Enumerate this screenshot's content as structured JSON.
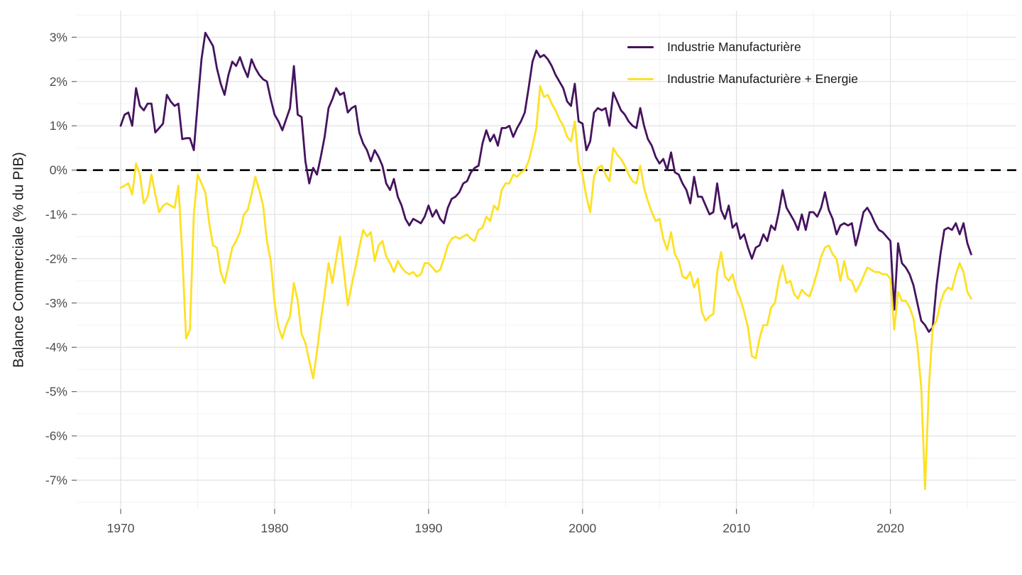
{
  "chart_data": {
    "type": "line",
    "title": "",
    "y_axis_title": "Balance Commerciale (% du PIB)",
    "x_axis_title": "",
    "x_start": 1970.0,
    "x_step": 0.25,
    "x_ticks": [
      1970,
      1980,
      1990,
      2000,
      2010,
      2020
    ],
    "x_minor_ticks": [
      1975,
      1985,
      1995,
      2005,
      2015,
      2025
    ],
    "y_ticks": [
      3,
      2,
      1,
      0,
      -1,
      -2,
      -3,
      -4,
      -5,
      -6,
      -7
    ],
    "y_minor_ticks": [
      3.5,
      2.5,
      1.5,
      0.5,
      -0.5,
      -1.5,
      -2.5,
      -3.5,
      -4.5,
      -5.5,
      -6.5,
      -7.5
    ],
    "y_tick_suffix": "%",
    "xlim": [
      1967.14,
      2028.18
    ],
    "ylim": [
      -7.65,
      3.6
    ],
    "grid": {
      "on": true,
      "major_color": "#e4e4e4",
      "minor_color": "#f0f0f0",
      "background": "#ffffff"
    },
    "tick_label_color": "#4d4d4d",
    "tick_mark_color": "#666666",
    "zero_reference_line": {
      "value": 0,
      "style": "dashed",
      "color": "#000000"
    },
    "legend": {
      "position": "top-right-inside"
    },
    "series": [
      {
        "name": "Industrie Manufacturière",
        "color": "#45135f",
        "values": [
          1.0,
          1.25,
          1.3,
          1.0,
          1.85,
          1.45,
          1.35,
          1.5,
          1.5,
          0.85,
          0.95,
          1.05,
          1.7,
          1.55,
          1.45,
          1.5,
          0.7,
          0.72,
          0.72,
          0.45,
          1.5,
          2.5,
          3.1,
          2.95,
          2.8,
          2.3,
          1.95,
          1.7,
          2.15,
          2.45,
          2.35,
          2.55,
          2.3,
          2.1,
          2.5,
          2.3,
          2.15,
          2.05,
          2.0,
          1.6,
          1.25,
          1.1,
          0.9,
          1.15,
          1.4,
          2.35,
          1.25,
          1.2,
          0.2,
          -0.3,
          0.05,
          -0.1,
          0.3,
          0.75,
          1.4,
          1.6,
          1.85,
          1.7,
          1.75,
          1.3,
          1.4,
          1.45,
          0.85,
          0.6,
          0.45,
          0.2,
          0.45,
          0.3,
          0.1,
          -0.3,
          -0.45,
          -0.2,
          -0.6,
          -0.8,
          -1.1,
          -1.25,
          -1.1,
          -1.15,
          -1.2,
          -1.05,
          -0.8,
          -1.05,
          -0.9,
          -1.1,
          -1.2,
          -0.85,
          -0.65,
          -0.6,
          -0.5,
          -0.3,
          -0.25,
          -0.05,
          0.05,
          0.1,
          0.6,
          0.9,
          0.65,
          0.8,
          0.55,
          0.95,
          0.95,
          1.0,
          0.75,
          0.95,
          1.1,
          1.3,
          1.85,
          2.45,
          2.7,
          2.55,
          2.6,
          2.5,
          2.35,
          2.15,
          2.0,
          1.85,
          1.55,
          1.45,
          1.95,
          1.1,
          1.05,
          0.45,
          0.65,
          1.3,
          1.4,
          1.35,
          1.4,
          1.0,
          1.75,
          1.55,
          1.35,
          1.25,
          1.1,
          1.0,
          0.95,
          1.4,
          1.0,
          0.7,
          0.55,
          0.3,
          0.15,
          0.25,
          0.0,
          0.4,
          -0.05,
          -0.1,
          -0.3,
          -0.45,
          -0.75,
          -0.15,
          -0.6,
          -0.6,
          -0.8,
          -1.0,
          -0.95,
          -0.3,
          -0.9,
          -1.1,
          -0.8,
          -1.3,
          -1.2,
          -1.55,
          -1.45,
          -1.75,
          -2.0,
          -1.75,
          -1.7,
          -1.45,
          -1.6,
          -1.25,
          -1.35,
          -0.95,
          -0.45,
          -0.85,
          -1.0,
          -1.15,
          -1.35,
          -1.0,
          -1.35,
          -0.95,
          -0.95,
          -1.05,
          -0.85,
          -0.5,
          -0.9,
          -1.1,
          -1.45,
          -1.25,
          -1.2,
          -1.25,
          -1.2,
          -1.7,
          -1.35,
          -0.95,
          -0.85,
          -1.0,
          -1.2,
          -1.35,
          -1.4,
          -1.5,
          -1.6,
          -3.15,
          -1.65,
          -2.1,
          -2.2,
          -2.35,
          -2.6,
          -3.0,
          -3.4,
          -3.5,
          -3.65,
          -3.55,
          -2.6,
          -1.9,
          -1.35,
          -1.3,
          -1.35,
          -1.2,
          -1.45,
          -1.2,
          -1.65,
          -1.9
        ]
      },
      {
        "name": "Industrie Manufacturière + Energie",
        "color": "#FDE125",
        "values": [
          -0.4,
          -0.35,
          -0.3,
          -0.55,
          0.15,
          -0.1,
          -0.75,
          -0.6,
          -0.1,
          -0.55,
          -0.95,
          -0.8,
          -0.75,
          -0.8,
          -0.85,
          -0.35,
          -1.9,
          -3.8,
          -3.6,
          -1.0,
          -0.1,
          -0.3,
          -0.5,
          -1.2,
          -1.7,
          -1.75,
          -2.3,
          -2.55,
          -2.15,
          -1.75,
          -1.6,
          -1.4,
          -1.0,
          -0.9,
          -0.55,
          -0.15,
          -0.45,
          -0.8,
          -1.6,
          -2.05,
          -3.0,
          -3.55,
          -3.8,
          -3.5,
          -3.3,
          -2.55,
          -2.95,
          -3.7,
          -3.9,
          -4.3,
          -4.7,
          -4.1,
          -3.4,
          -2.8,
          -2.1,
          -2.55,
          -2.0,
          -1.5,
          -2.3,
          -3.05,
          -2.6,
          -2.2,
          -1.75,
          -1.35,
          -1.5,
          -1.4,
          -2.05,
          -1.7,
          -1.6,
          -1.95,
          -2.1,
          -2.3,
          -2.05,
          -2.2,
          -2.3,
          -2.35,
          -2.3,
          -2.4,
          -2.35,
          -2.1,
          -2.1,
          -2.2,
          -2.3,
          -2.25,
          -2.0,
          -1.7,
          -1.55,
          -1.5,
          -1.55,
          -1.5,
          -1.45,
          -1.55,
          -1.6,
          -1.35,
          -1.3,
          -1.05,
          -1.15,
          -0.8,
          -0.9,
          -0.45,
          -0.3,
          -0.3,
          -0.1,
          -0.15,
          -0.05,
          0.0,
          0.2,
          0.55,
          0.95,
          1.9,
          1.65,
          1.7,
          1.5,
          1.35,
          1.15,
          1.0,
          0.75,
          0.65,
          1.1,
          0.15,
          -0.1,
          -0.6,
          -0.95,
          -0.15,
          0.05,
          0.1,
          -0.1,
          -0.25,
          0.5,
          0.35,
          0.25,
          0.1,
          -0.1,
          -0.25,
          -0.3,
          0.1,
          -0.4,
          -0.7,
          -0.95,
          -1.15,
          -1.1,
          -1.55,
          -1.8,
          -1.4,
          -1.9,
          -2.05,
          -2.4,
          -2.45,
          -2.3,
          -2.65,
          -2.45,
          -3.2,
          -3.4,
          -3.3,
          -3.25,
          -2.3,
          -1.85,
          -2.4,
          -2.5,
          -2.35,
          -2.7,
          -2.9,
          -3.2,
          -3.55,
          -4.2,
          -4.25,
          -3.8,
          -3.5,
          -3.5,
          -3.1,
          -3.0,
          -2.5,
          -2.15,
          -2.55,
          -2.5,
          -2.8,
          -2.9,
          -2.7,
          -2.8,
          -2.85,
          -2.6,
          -2.3,
          -1.95,
          -1.75,
          -1.7,
          -1.9,
          -2.0,
          -2.5,
          -2.05,
          -2.45,
          -2.5,
          -2.75,
          -2.6,
          -2.4,
          -2.2,
          -2.25,
          -2.3,
          -2.3,
          -2.35,
          -2.35,
          -2.45,
          -3.6,
          -2.75,
          -2.95,
          -2.95,
          -3.1,
          -3.35,
          -3.95,
          -4.9,
          -7.2,
          -4.9,
          -3.55,
          -3.4,
          -3.0,
          -2.75,
          -2.65,
          -2.7,
          -2.35,
          -2.1,
          -2.3,
          -2.75,
          -2.9
        ]
      }
    ]
  }
}
